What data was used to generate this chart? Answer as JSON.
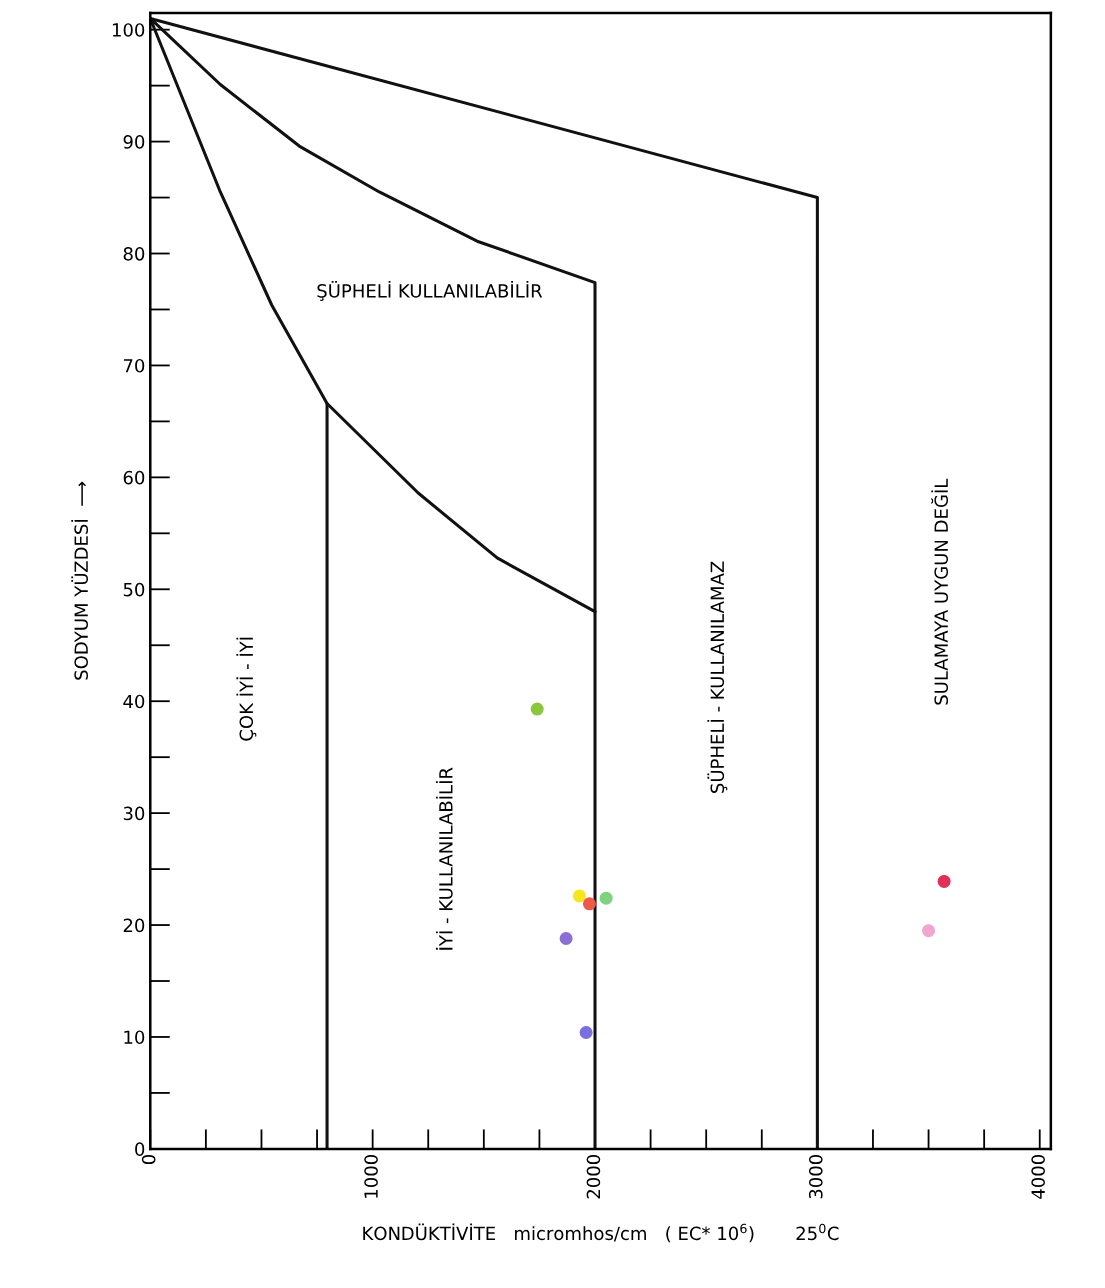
{
  "chart_data": {
    "type": "scatter",
    "xlabel": "KONDÜKTİVİTE   micromhos/cm   ( EC* 10$^{6}$)       25$^{0}$C",
    "ylabel": "SODYUM YÜZDESİ  ⟶",
    "xlim": [
      0,
      4050
    ],
    "ylim": [
      0,
      101.5
    ],
    "xticks": [
      0,
      1000,
      2000,
      3000,
      4000
    ],
    "yticks": [
      0,
      10,
      20,
      30,
      40,
      50,
      60,
      70,
      80,
      90,
      100
    ],
    "grid": false,
    "legend": false,
    "series": [
      {
        "type": "line",
        "color": "#111111",
        "x": [
          0,
          3000,
          3000
        ],
        "values": [
          101,
          85,
          0
        ]
      },
      {
        "type": "line",
        "color": "#111111",
        "x": [
          0,
          315,
          670,
          1030,
          1470,
          2000,
          2000
        ],
        "values": [
          101,
          95.1,
          89.6,
          85.5,
          81.1,
          77.4,
          0
        ]
      },
      {
        "type": "line",
        "color": "#111111",
        "x": [
          0,
          315,
          546,
          795,
          1205,
          1560,
          2000
        ],
        "values": [
          101,
          85.5,
          75.4,
          66.6,
          58.6,
          52.8,
          48.0
        ]
      },
      {
        "type": "line",
        "color": "#111111",
        "x": [
          795,
          795
        ],
        "values": [
          66.6,
          0
        ]
      },
      {
        "marker": "circle",
        "x": [
          1740,
          1930,
          1975,
          2050,
          1870,
          1960,
          3570,
          3500
        ],
        "values": [
          39.3,
          22.6,
          21.9,
          22.4,
          18.8,
          10.4,
          23.9,
          19.5
        ],
        "colors": [
          "#8cc63f",
          "#f5e61e",
          "#ee5a4a",
          "#7ed37e",
          "#8a6fd6",
          "#7a6ee0",
          "#e0305a",
          "#f2a6cf"
        ]
      }
    ],
    "annotations": [
      "ŞÜPHELİ KULLANILABİLİR",
      "ÇOK İYİ - İYİ",
      "İYİ - KULLANILABİLİR",
      "ŞÜPHELİ - KULLANILAMAZ",
      "SULAMAYA UYGUN DEĞİL"
    ]
  }
}
